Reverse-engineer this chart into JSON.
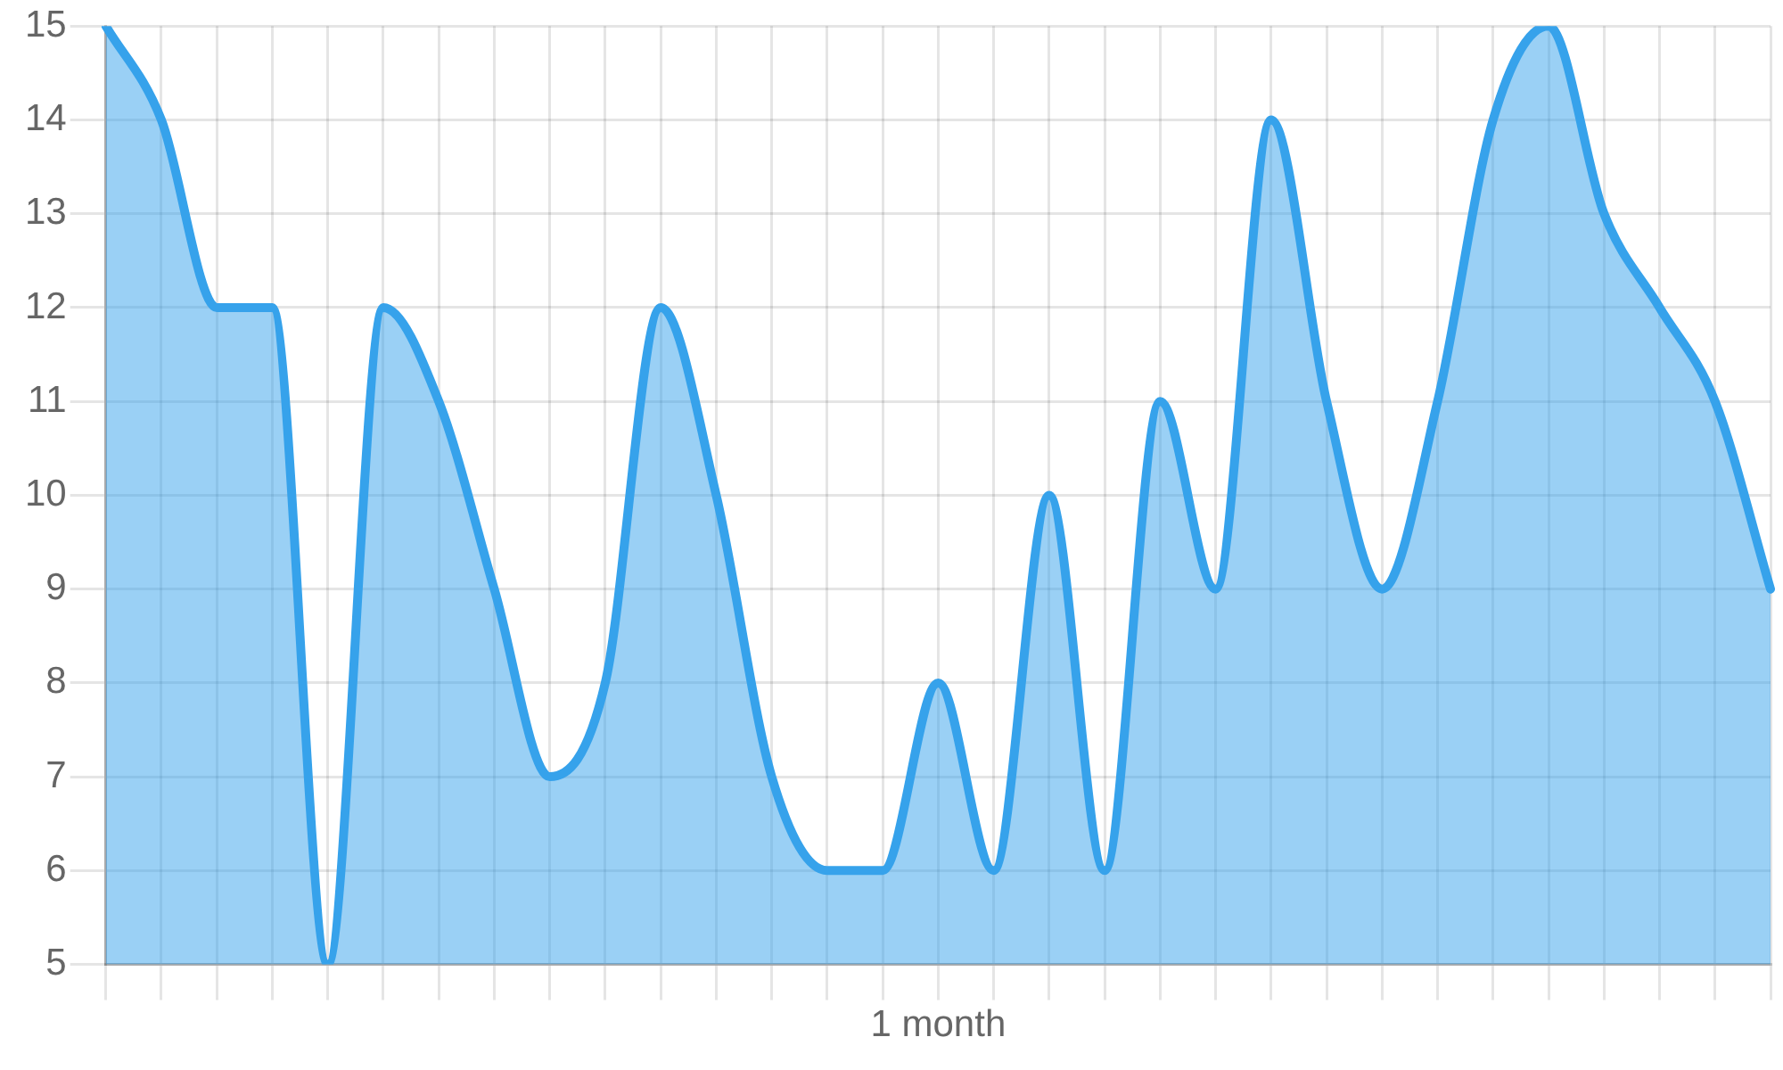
{
  "chart_data": {
    "type": "area",
    "xlabel": "1 month",
    "categories": [
      null,
      null,
      null,
      null,
      null,
      null,
      null,
      null,
      null,
      null,
      null,
      null,
      null,
      null,
      null,
      null,
      null,
      null,
      null,
      null,
      null,
      null,
      null,
      null,
      null,
      null,
      null,
      null,
      null,
      null,
      null
    ],
    "series": [
      {
        "color": "#36a2eb",
        "values": [
          15,
          14,
          12,
          12,
          5,
          12,
          11,
          9,
          7,
          8,
          12,
          10,
          7,
          6,
          6,
          8,
          6,
          10,
          6,
          11,
          9,
          14,
          11,
          9,
          11,
          14,
          15,
          13,
          12,
          11,
          9
        ]
      }
    ],
    "ylim": [
      5,
      15
    ],
    "yticks": [
      5,
      6,
      7,
      8,
      9,
      10,
      11,
      12,
      13,
      14,
      15
    ],
    "grid": true,
    "legend": false,
    "marker": "none"
  }
}
